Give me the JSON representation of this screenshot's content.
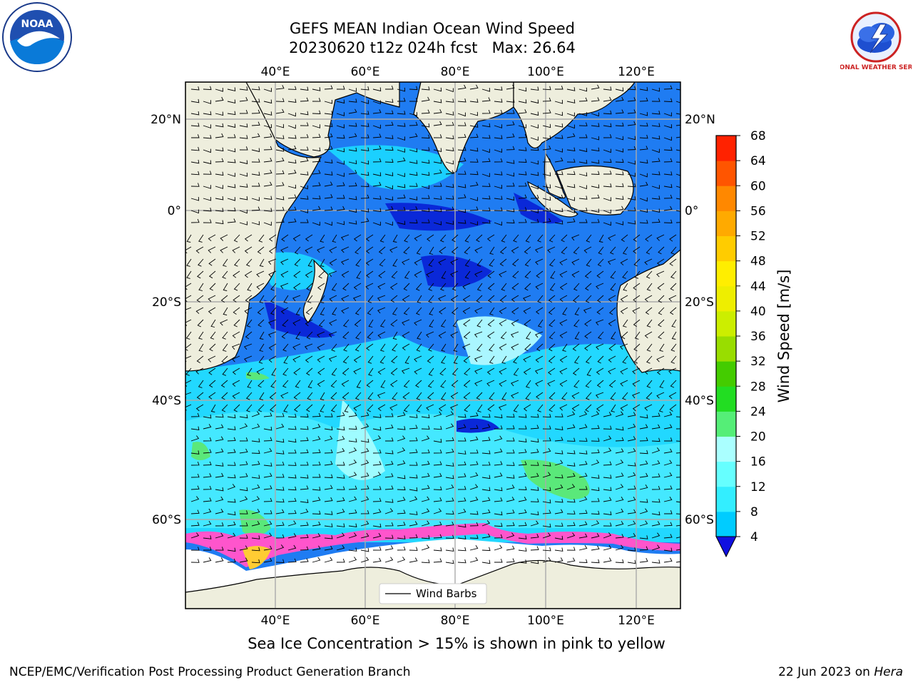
{
  "title": {
    "line1": "GEFS MEAN Indian Ocean Wind Speed",
    "line2": "20230620 t12z 024h fcst   Max: 26.64"
  },
  "logos": {
    "noaa": {
      "text": "NOAA",
      "icon": "noaa-logo-icon"
    },
    "nws": {
      "text": "NATIONAL WEATHER SERVICE",
      "icon": "nws-logo-icon"
    }
  },
  "map": {
    "projection": "cylindrical",
    "lon_range": [
      20,
      130
    ],
    "lat_range": [
      -74,
      28
    ],
    "lon_ticks": [
      "40°E",
      "60°E",
      "80°E",
      "100°E",
      "120°E"
    ],
    "lat_ticks": [
      "20°N",
      "0°",
      "20°S",
      "40°S",
      "60°S"
    ],
    "grid": true,
    "land_color": "#eeeedd",
    "overlays": [
      "wind speed shading",
      "wind barbs",
      "sea ice concentration"
    ],
    "legend": {
      "label": "Wind Barbs",
      "placement": "bottom-center"
    }
  },
  "colorbar": {
    "label": "Wind Speed [m/s]",
    "ticks": [
      "4",
      "8",
      "12",
      "16",
      "20",
      "24",
      "28",
      "32",
      "36",
      "40",
      "44",
      "48",
      "52",
      "56",
      "60",
      "64",
      "68"
    ],
    "colors": [
      "#0066ff",
      "#00ccff",
      "#33eeff",
      "#66ffff",
      "#aaffff",
      "#55ee77",
      "#22dd22",
      "#44cc00",
      "#99dd00",
      "#ccee00",
      "#eeee00",
      "#ffee00",
      "#ffcc00",
      "#ffaa00",
      "#ff8800",
      "#ff5500",
      "#ff2200",
      "#ff0000"
    ],
    "extend": "min"
  },
  "caption": "Sea Ice Concentration > 15% is shown in pink to yellow",
  "footer": {
    "credit": "NCEP/EMC/Verification Post Processing Product Generation Branch",
    "date_prefix": "22 Jun 2023 on ",
    "machine": "Hera"
  }
}
